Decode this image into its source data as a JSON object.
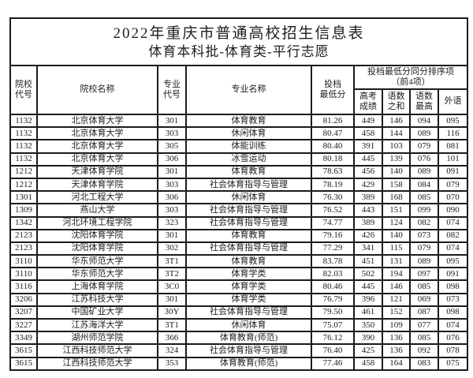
{
  "title": {
    "line1": "2022年重庆市普通高校招生信息表",
    "line2": "体育本科批-体育类-平行志愿"
  },
  "table": {
    "headers": {
      "school_code": [
        "院校",
        "代号"
      ],
      "school_name": "院校名称",
      "major_code": [
        "专业",
        "代号"
      ],
      "major_name": "专业名称",
      "min_score": [
        "投档",
        "最低分"
      ],
      "tiebreak_group": [
        "投档最低分同分排序项",
        "（前4项）"
      ],
      "gaokao_score": [
        "高考",
        "成绩"
      ],
      "chinese_math_sum": [
        "语数",
        "之和"
      ],
      "chinese_math_max": [
        "语数",
        "最高"
      ],
      "foreign_lang": "外语"
    },
    "rows": [
      [
        "1132",
        "北京体育大学",
        "301",
        "体育教育",
        "81.26",
        "449",
        "146",
        "094",
        "095"
      ],
      [
        "1132",
        "北京体育大学",
        "303",
        "休闲体育",
        "80.47",
        "458",
        "144",
        "089",
        "116"
      ],
      [
        "1132",
        "北京体育大学",
        "305",
        "体能训练",
        "80.40",
        "391",
        "103",
        "079",
        "081"
      ],
      [
        "1132",
        "北京体育大学",
        "306",
        "冰雪运动",
        "80.18",
        "445",
        "139",
        "076",
        "101"
      ],
      [
        "1212",
        "天津体育学院",
        "301",
        "体育教育",
        "78.63",
        "456",
        "140",
        "089",
        "091"
      ],
      [
        "1212",
        "天津体育学院",
        "303",
        "社会体育指导与管理",
        "78.19",
        "429",
        "158",
        "084",
        "079"
      ],
      [
        "1301",
        "河北工程大学",
        "306",
        "休闲体育",
        "76.30",
        "389",
        "168",
        "085",
        "070"
      ],
      [
        "1309",
        "燕山大学",
        "303",
        "社会体育指导与管理",
        "76.52",
        "443",
        "151",
        "099",
        "090"
      ],
      [
        "1342",
        "河北环境工程学院",
        "323",
        "社会体育指导与管理",
        "74.77",
        "389",
        "124",
        "082",
        "074"
      ],
      [
        "2123",
        "沈阳体育学院",
        "301",
        "体育教育",
        "79.16",
        "426",
        "140",
        "073",
        "082"
      ],
      [
        "2123",
        "沈阳体育学院",
        "302",
        "社会体育指导与管理",
        "77.29",
        "341",
        "115",
        "079",
        "074"
      ],
      [
        "3110",
        "华东师范大学",
        "3T1",
        "体育教育",
        "83.78",
        "451",
        "131",
        "089",
        "095"
      ],
      [
        "3110",
        "华东师范大学",
        "3T2",
        "体育学类",
        "82.03",
        "502",
        "194",
        "097",
        "091"
      ],
      [
        "3116",
        "上海体育学院",
        "3C0",
        "体育学类",
        "80.46",
        "445",
        "146",
        "085",
        "098"
      ],
      [
        "3206",
        "江苏科技大学",
        "301",
        "体育学类",
        "76.79",
        "396",
        "121",
        "069",
        "073"
      ],
      [
        "3207",
        "中国矿业大学",
        "30Y",
        "社会体育指导与管理",
        "79.50",
        "461",
        "152",
        "087",
        "098"
      ],
      [
        "3227",
        "江苏海洋大学",
        "3T1",
        "休闲体育",
        "75.07",
        "350",
        "109",
        "077",
        "074"
      ],
      [
        "3349",
        "湖州师范学院",
        "366",
        "体育教育(师范)",
        "76.12",
        "390",
        "136",
        "085",
        "076"
      ],
      [
        "3615",
        "江西科技师范大学",
        "324",
        "社会体育指导与管理",
        "76.40",
        "425",
        "136",
        "092",
        "078"
      ],
      [
        "3615",
        "江西科技师范大学",
        "353",
        "体育教育(师范)",
        "77.46",
        "458",
        "164",
        "083",
        "075"
      ]
    ]
  },
  "colors": {
    "border": "#1b1b1b",
    "text": "#1d1d1d",
    "background": "#ffffff"
  }
}
